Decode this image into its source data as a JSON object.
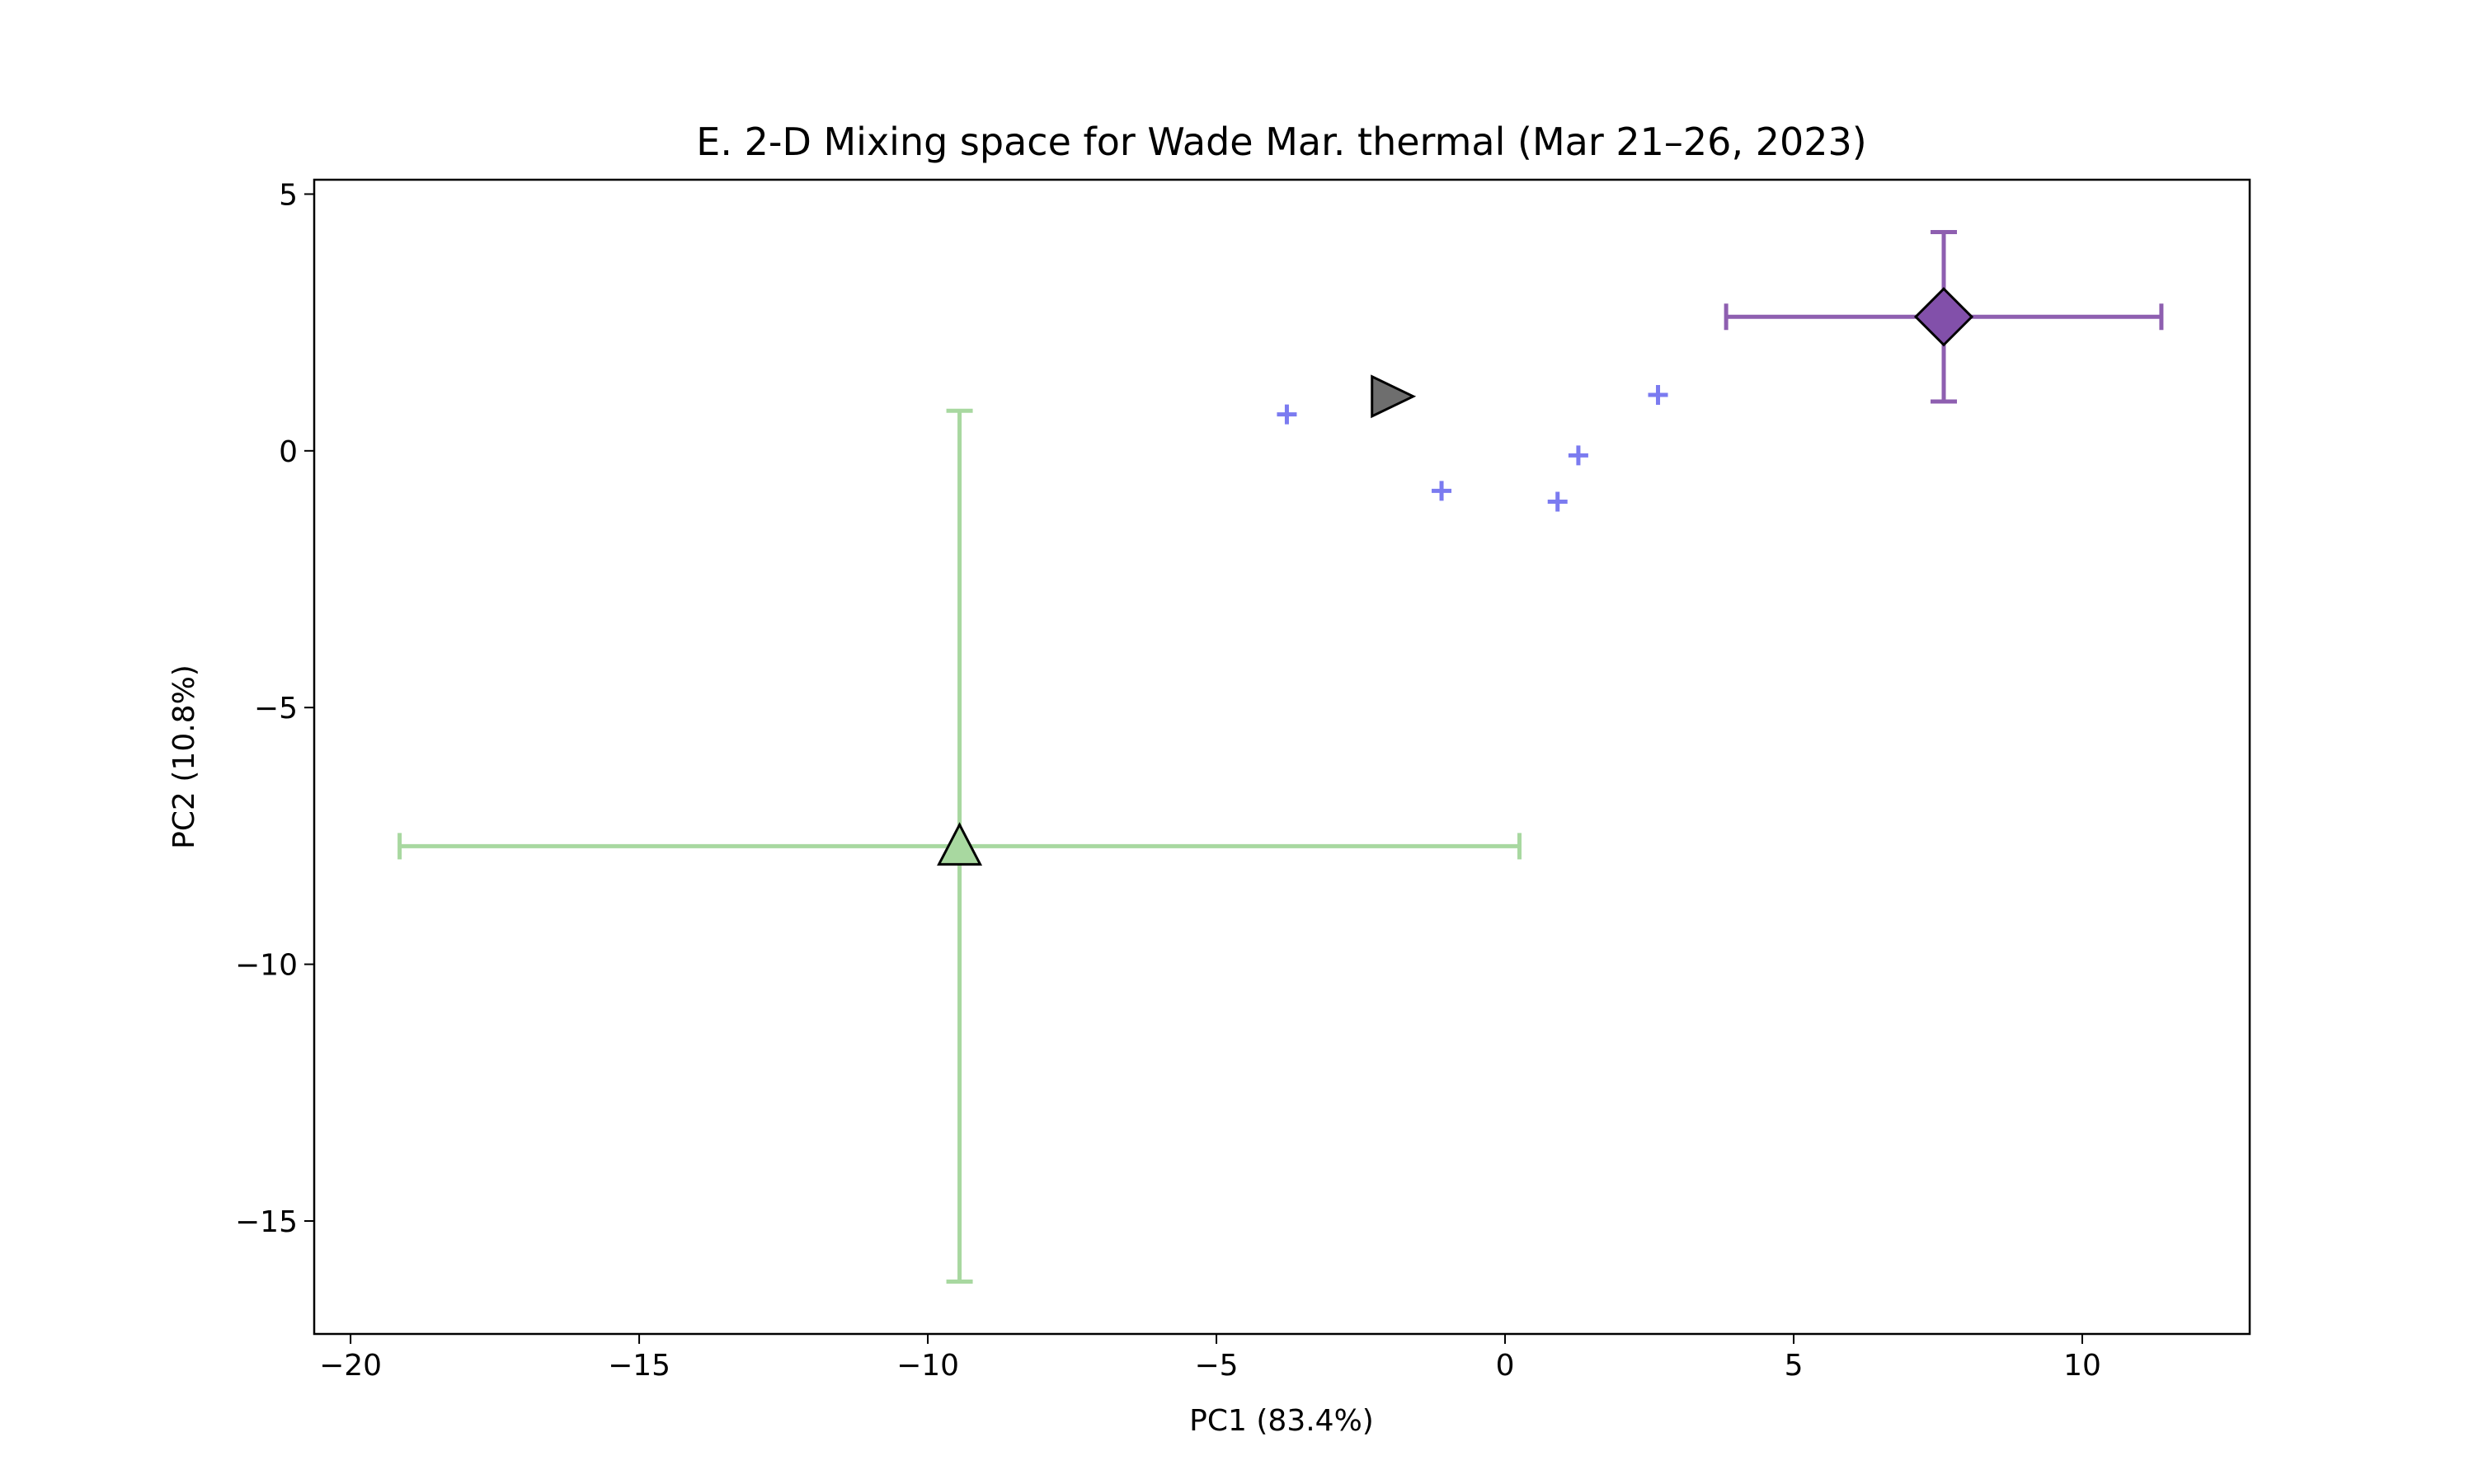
{
  "chart_data": {
    "type": "scatter",
    "title": "E. 2-D Mixing space for Wade Mar. thermal (Mar 21–26, 2023)",
    "xlabel": "PC1 (83.4%)",
    "ylabel": "PC2 (10.8%)",
    "xlim": [
      -20.63,
      12.9
    ],
    "ylim": [
      -17.2,
      5.28
    ],
    "xticks": [
      {
        "value": -20,
        "label": "−20"
      },
      {
        "value": -15,
        "label": "−15"
      },
      {
        "value": -10,
        "label": "−10"
      },
      {
        "value": -5,
        "label": "−5"
      },
      0,
      5,
      10
    ],
    "yticks": [
      {
        "value": -15,
        "label": "−15"
      },
      {
        "value": -10,
        "label": "−10"
      },
      {
        "value": -5,
        "label": "−5"
      },
      0,
      5
    ],
    "grid": false,
    "series": [
      {
        "marker": "^",
        "color": "#a8d8a0",
        "errcolor": "#a8d8a0",
        "x": [
          -9.45
        ],
        "y": [
          -7.7
        ],
        "xerr": [
          9.7
        ],
        "yerr": [
          8.48
        ]
      },
      {
        "marker": "D",
        "color": "#8250aa",
        "errcolor": "#8e5fb0",
        "x": [
          7.6
        ],
        "y": [
          2.61
        ],
        "xerr": [
          3.77
        ],
        "yerr": [
          1.65
        ]
      },
      {
        "marker": ">",
        "color": "#6e6e6e",
        "x": [
          -1.99
        ],
        "y": [
          1.06
        ]
      },
      {
        "marker": "+",
        "color": "#7b7bf0",
        "x": [
          -3.78,
          -1.1,
          0.91,
          1.27,
          2.65
        ],
        "y": [
          0.71,
          -0.78,
          -0.99,
          -0.09,
          1.09
        ]
      }
    ]
  }
}
